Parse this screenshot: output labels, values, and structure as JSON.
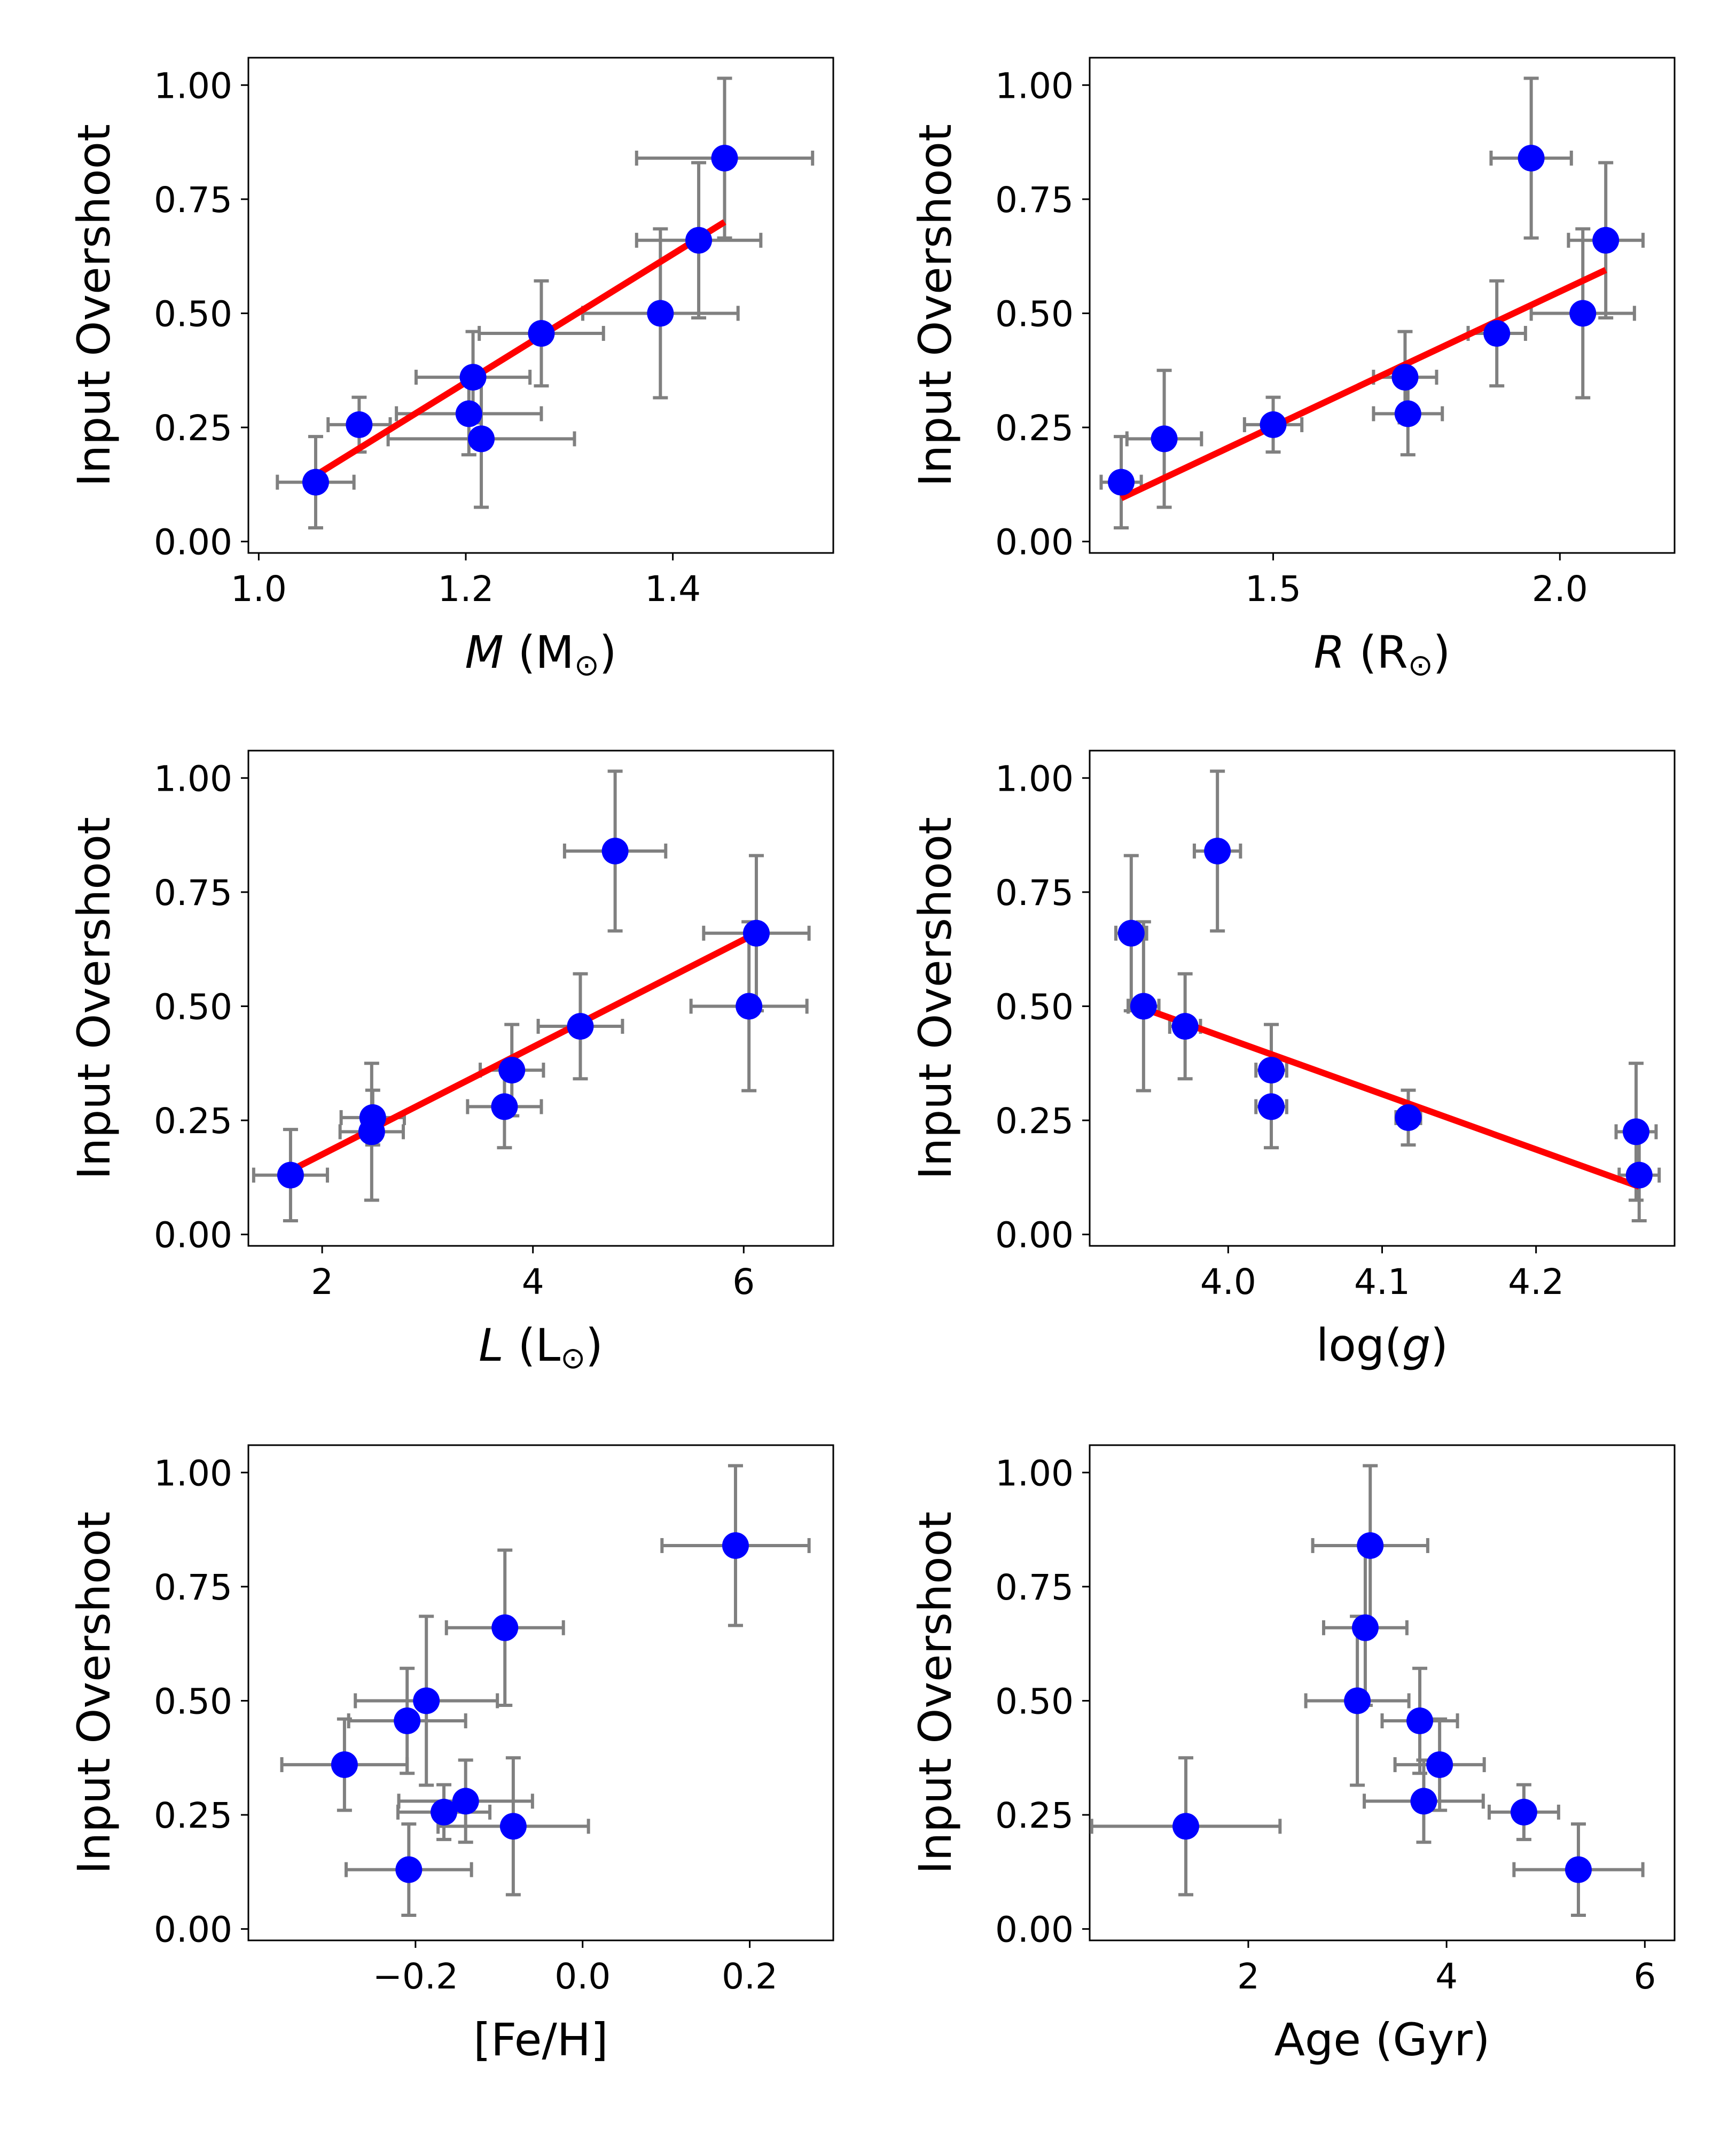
{
  "chart_data": [
    {
      "type": "scatter",
      "panel": "mass",
      "xlabel_parts": [
        {
          "text": "M",
          "italic": true
        },
        {
          "text": " (M"
        },
        {
          "text": "⊙",
          "sub": true
        },
        {
          "text": ")"
        }
      ],
      "ylabel": "Input Overshoot",
      "xlim": [
        0.99,
        1.555
      ],
      "ylim": [
        -0.025,
        1.06
      ],
      "xticks": [
        {
          "v": 1.0,
          "label": "1.0"
        },
        {
          "v": 1.2,
          "label": "1.2"
        },
        {
          "v": 1.4,
          "label": "1.4"
        }
      ],
      "yticks": [
        {
          "v": 0.0,
          "label": "0.00"
        },
        {
          "v": 0.25,
          "label": "0.25"
        },
        {
          "v": 0.5,
          "label": "0.50"
        },
        {
          "v": 0.75,
          "label": "0.75"
        },
        {
          "v": 1.0,
          "label": "1.00"
        }
      ],
      "points": [
        {
          "x": 1.055,
          "y": 0.13,
          "xerr": 0.037,
          "yerr": 0.1
        },
        {
          "x": 1.097,
          "y": 0.256,
          "xerr": 0.03,
          "yerr": 0.06
        },
        {
          "x": 1.203,
          "y": 0.28,
          "xerr": 0.07,
          "yerr": 0.09
        },
        {
          "x": 1.207,
          "y": 0.36,
          "xerr": 0.055,
          "yerr": 0.1
        },
        {
          "x": 1.215,
          "y": 0.225,
          "xerr": 0.09,
          "yerr": 0.15
        },
        {
          "x": 1.273,
          "y": 0.456,
          "xerr": 0.06,
          "yerr": 0.115
        },
        {
          "x": 1.388,
          "y": 0.5,
          "xerr": 0.075,
          "yerr": 0.185
        },
        {
          "x": 1.425,
          "y": 0.66,
          "xerr": 0.06,
          "yerr": 0.17
        },
        {
          "x": 1.45,
          "y": 0.84,
          "xerr": 0.085,
          "yerr": 0.175
        }
      ],
      "fit": {
        "x": [
          1.055,
          1.45
        ],
        "y": [
          0.145,
          0.7
        ]
      }
    },
    {
      "type": "scatter",
      "panel": "radius",
      "xlabel_parts": [
        {
          "text": "R",
          "italic": true
        },
        {
          "text": " (R"
        },
        {
          "text": "⊙",
          "sub": true
        },
        {
          "text": ")"
        }
      ],
      "ylabel": "Input Overshoot",
      "xlim": [
        1.18,
        2.2
      ],
      "ylim": [
        -0.025,
        1.06
      ],
      "xticks": [
        {
          "v": 1.5,
          "label": "1.5"
        },
        {
          "v": 2.0,
          "label": "2.0"
        }
      ],
      "yticks": [
        {
          "v": 0.0,
          "label": "0.00"
        },
        {
          "v": 0.25,
          "label": "0.25"
        },
        {
          "v": 0.5,
          "label": "0.50"
        },
        {
          "v": 0.75,
          "label": "0.75"
        },
        {
          "v": 1.0,
          "label": "1.00"
        }
      ],
      "points": [
        {
          "x": 1.235,
          "y": 0.13,
          "xerr": 0.035,
          "yerr": 0.1
        },
        {
          "x": 1.31,
          "y": 0.225,
          "xerr": 0.065,
          "yerr": 0.15
        },
        {
          "x": 1.5,
          "y": 0.256,
          "xerr": 0.05,
          "yerr": 0.06
        },
        {
          "x": 1.735,
          "y": 0.28,
          "xerr": 0.06,
          "yerr": 0.09
        },
        {
          "x": 1.73,
          "y": 0.36,
          "xerr": 0.055,
          "yerr": 0.1
        },
        {
          "x": 1.89,
          "y": 0.456,
          "xerr": 0.05,
          "yerr": 0.115
        },
        {
          "x": 1.95,
          "y": 0.84,
          "xerr": 0.07,
          "yerr": 0.175
        },
        {
          "x": 2.04,
          "y": 0.5,
          "xerr": 0.09,
          "yerr": 0.185
        },
        {
          "x": 2.08,
          "y": 0.66,
          "xerr": 0.065,
          "yerr": 0.17
        }
      ],
      "fit": {
        "x": [
          1.235,
          2.08
        ],
        "y": [
          0.095,
          0.595
        ]
      }
    },
    {
      "type": "scatter",
      "panel": "luminosity",
      "xlabel_parts": [
        {
          "text": "L",
          "italic": true
        },
        {
          "text": " (L"
        },
        {
          "text": "⊙",
          "sub": true
        },
        {
          "text": ")"
        }
      ],
      "ylabel": "Input Overshoot",
      "xlim": [
        1.3,
        6.85
      ],
      "ylim": [
        -0.025,
        1.06
      ],
      "xticks": [
        {
          "v": 2,
          "label": "2"
        },
        {
          "v": 4,
          "label": "4"
        },
        {
          "v": 6,
          "label": "6"
        }
      ],
      "yticks": [
        {
          "v": 0.0,
          "label": "0.00"
        },
        {
          "v": 0.25,
          "label": "0.25"
        },
        {
          "v": 0.5,
          "label": "0.50"
        },
        {
          "v": 0.75,
          "label": "0.75"
        },
        {
          "v": 1.0,
          "label": "1.00"
        }
      ],
      "points": [
        {
          "x": 1.7,
          "y": 0.13,
          "xerr": 0.35,
          "yerr": 0.1
        },
        {
          "x": 2.47,
          "y": 0.225,
          "xerr": 0.3,
          "yerr": 0.15
        },
        {
          "x": 2.48,
          "y": 0.256,
          "xerr": 0.3,
          "yerr": 0.06
        },
        {
          "x": 3.73,
          "y": 0.28,
          "xerr": 0.35,
          "yerr": 0.09
        },
        {
          "x": 3.8,
          "y": 0.36,
          "xerr": 0.3,
          "yerr": 0.1
        },
        {
          "x": 4.45,
          "y": 0.456,
          "xerr": 0.4,
          "yerr": 0.115
        },
        {
          "x": 4.78,
          "y": 0.84,
          "xerr": 0.48,
          "yerr": 0.175
        },
        {
          "x": 6.05,
          "y": 0.5,
          "xerr": 0.55,
          "yerr": 0.185
        },
        {
          "x": 6.12,
          "y": 0.66,
          "xerr": 0.5,
          "yerr": 0.17
        }
      ],
      "fit": {
        "x": [
          1.7,
          6.12
        ],
        "y": [
          0.14,
          0.66
        ]
      }
    },
    {
      "type": "scatter",
      "panel": "logg",
      "xlabel_parts": [
        {
          "text": "log("
        },
        {
          "text": "g",
          "italic": true
        },
        {
          "text": ")"
        }
      ],
      "ylabel": "Input Overshoot",
      "xlim": [
        3.91,
        4.29
      ],
      "ylim": [
        -0.025,
        1.06
      ],
      "xticks": [
        {
          "v": 4.0,
          "label": "4.0"
        },
        {
          "v": 4.1,
          "label": "4.1"
        },
        {
          "v": 4.2,
          "label": "4.2"
        }
      ],
      "yticks": [
        {
          "v": 0.0,
          "label": "0.00"
        },
        {
          "v": 0.25,
          "label": "0.25"
        },
        {
          "v": 0.5,
          "label": "0.50"
        },
        {
          "v": 0.75,
          "label": "0.75"
        },
        {
          "v": 1.0,
          "label": "1.00"
        }
      ],
      "points": [
        {
          "x": 3.937,
          "y": 0.66,
          "xerr": 0.01,
          "yerr": 0.17
        },
        {
          "x": 3.945,
          "y": 0.5,
          "xerr": 0.01,
          "yerr": 0.185
        },
        {
          "x": 3.972,
          "y": 0.456,
          "xerr": 0.01,
          "yerr": 0.115
        },
        {
          "x": 3.993,
          "y": 0.84,
          "xerr": 0.015,
          "yerr": 0.175
        },
        {
          "x": 4.028,
          "y": 0.36,
          "xerr": 0.01,
          "yerr": 0.1
        },
        {
          "x": 4.028,
          "y": 0.28,
          "xerr": 0.01,
          "yerr": 0.09
        },
        {
          "x": 4.117,
          "y": 0.256,
          "xerr": 0.008,
          "yerr": 0.06
        },
        {
          "x": 4.265,
          "y": 0.225,
          "xerr": 0.013,
          "yerr": 0.15
        },
        {
          "x": 4.267,
          "y": 0.13,
          "xerr": 0.013,
          "yerr": 0.1
        }
      ],
      "fit": {
        "x": [
          3.937,
          4.267
        ],
        "y": [
          0.505,
          0.105
        ]
      }
    },
    {
      "type": "scatter",
      "panel": "metallicity",
      "xlabel_parts": [
        {
          "text": "[Fe/H]"
        }
      ],
      "ylabel": "Input Overshoot",
      "xlim": [
        -0.4,
        0.3
      ],
      "ylim": [
        -0.025,
        1.06
      ],
      "xticks": [
        {
          "v": -0.2,
          "label": "−0.2"
        },
        {
          "v": 0.0,
          "label": "0.0"
        },
        {
          "v": 0.2,
          "label": "0.2"
        }
      ],
      "yticks": [
        {
          "v": 0.0,
          "label": "0.00"
        },
        {
          "v": 0.25,
          "label": "0.25"
        },
        {
          "v": 0.5,
          "label": "0.50"
        },
        {
          "v": 0.75,
          "label": "0.75"
        },
        {
          "v": 1.0,
          "label": "1.00"
        }
      ],
      "points": [
        {
          "x": -0.285,
          "y": 0.36,
          "xerr": 0.075,
          "yerr": 0.1
        },
        {
          "x": -0.21,
          "y": 0.456,
          "xerr": 0.07,
          "yerr": 0.115
        },
        {
          "x": -0.187,
          "y": 0.5,
          "xerr": 0.085,
          "yerr": 0.185
        },
        {
          "x": -0.093,
          "y": 0.66,
          "xerr": 0.07,
          "yerr": 0.17
        },
        {
          "x": -0.166,
          "y": 0.256,
          "xerr": 0.055,
          "yerr": 0.06
        },
        {
          "x": -0.14,
          "y": 0.28,
          "xerr": 0.08,
          "yerr": 0.09
        },
        {
          "x": -0.083,
          "y": 0.225,
          "xerr": 0.09,
          "yerr": 0.15
        },
        {
          "x": -0.208,
          "y": 0.13,
          "xerr": 0.075,
          "yerr": 0.1
        },
        {
          "x": 0.183,
          "y": 0.84,
          "xerr": 0.088,
          "yerr": 0.175
        }
      ]
    },
    {
      "type": "scatter",
      "panel": "age",
      "xlabel_parts": [
        {
          "text": "Age (Gyr)"
        }
      ],
      "ylabel": "Input Overshoot",
      "xlim": [
        0.4,
        6.3
      ],
      "ylim": [
        -0.025,
        1.06
      ],
      "xticks": [
        {
          "v": 2,
          "label": "2"
        },
        {
          "v": 4,
          "label": "4"
        },
        {
          "v": 6,
          "label": "6"
        }
      ],
      "yticks": [
        {
          "v": 0.0,
          "label": "0.00"
        },
        {
          "v": 0.25,
          "label": "0.25"
        },
        {
          "v": 0.5,
          "label": "0.50"
        },
        {
          "v": 0.75,
          "label": "0.75"
        },
        {
          "v": 1.0,
          "label": "1.00"
        }
      ],
      "points": [
        {
          "x": 1.37,
          "y": 0.225,
          "xerr": 0.95,
          "yerr": 0.15
        },
        {
          "x": 3.1,
          "y": 0.5,
          "xerr": 0.52,
          "yerr": 0.185
        },
        {
          "x": 3.18,
          "y": 0.66,
          "xerr": 0.42,
          "yerr": 0.17
        },
        {
          "x": 3.23,
          "y": 0.84,
          "xerr": 0.58,
          "yerr": 0.175
        },
        {
          "x": 3.73,
          "y": 0.456,
          "xerr": 0.38,
          "yerr": 0.115
        },
        {
          "x": 3.77,
          "y": 0.28,
          "xerr": 0.6,
          "yerr": 0.09
        },
        {
          "x": 3.93,
          "y": 0.36,
          "xerr": 0.45,
          "yerr": 0.1
        },
        {
          "x": 4.78,
          "y": 0.256,
          "xerr": 0.35,
          "yerr": 0.06
        },
        {
          "x": 5.33,
          "y": 0.13,
          "xerr": 0.65,
          "yerr": 0.1
        }
      ]
    }
  ],
  "colors": {
    "marker": "#0000ff",
    "errorbar": "#808080",
    "fit_line": "#ff0000",
    "axes": "#000000"
  }
}
